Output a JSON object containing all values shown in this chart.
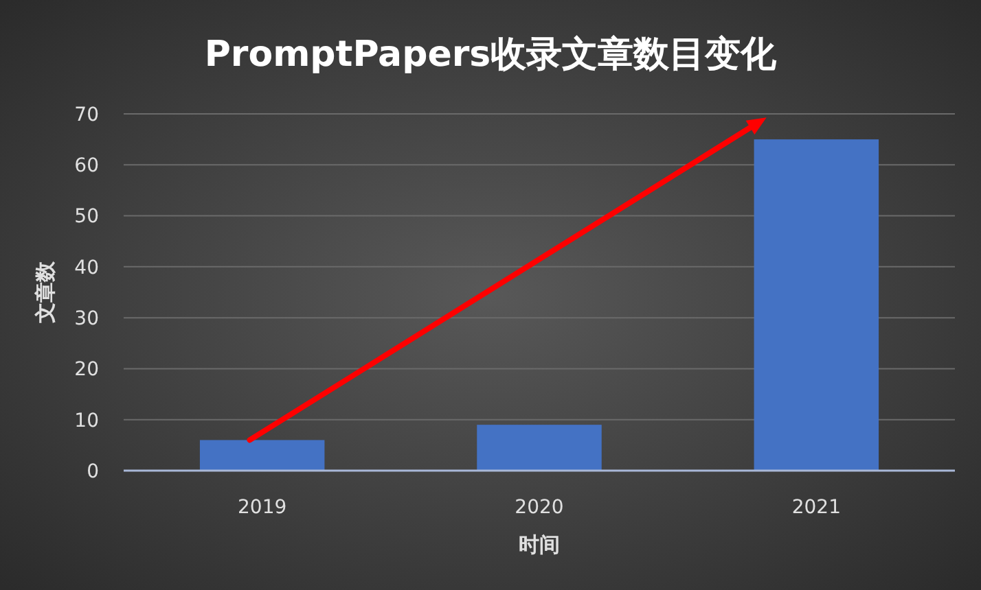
{
  "chart_data": {
    "type": "bar",
    "title": "PromptPapers收录文章数目变化",
    "xlabel": "时间",
    "ylabel": "文章数",
    "categories": [
      "2019",
      "2020",
      "2021"
    ],
    "values": [
      6,
      9,
      65
    ],
    "color": "#4472c4",
    "ylim": [
      0,
      70
    ],
    "yticks": [
      0,
      10,
      20,
      30,
      40,
      50,
      60,
      70
    ],
    "grid": "y"
  }
}
